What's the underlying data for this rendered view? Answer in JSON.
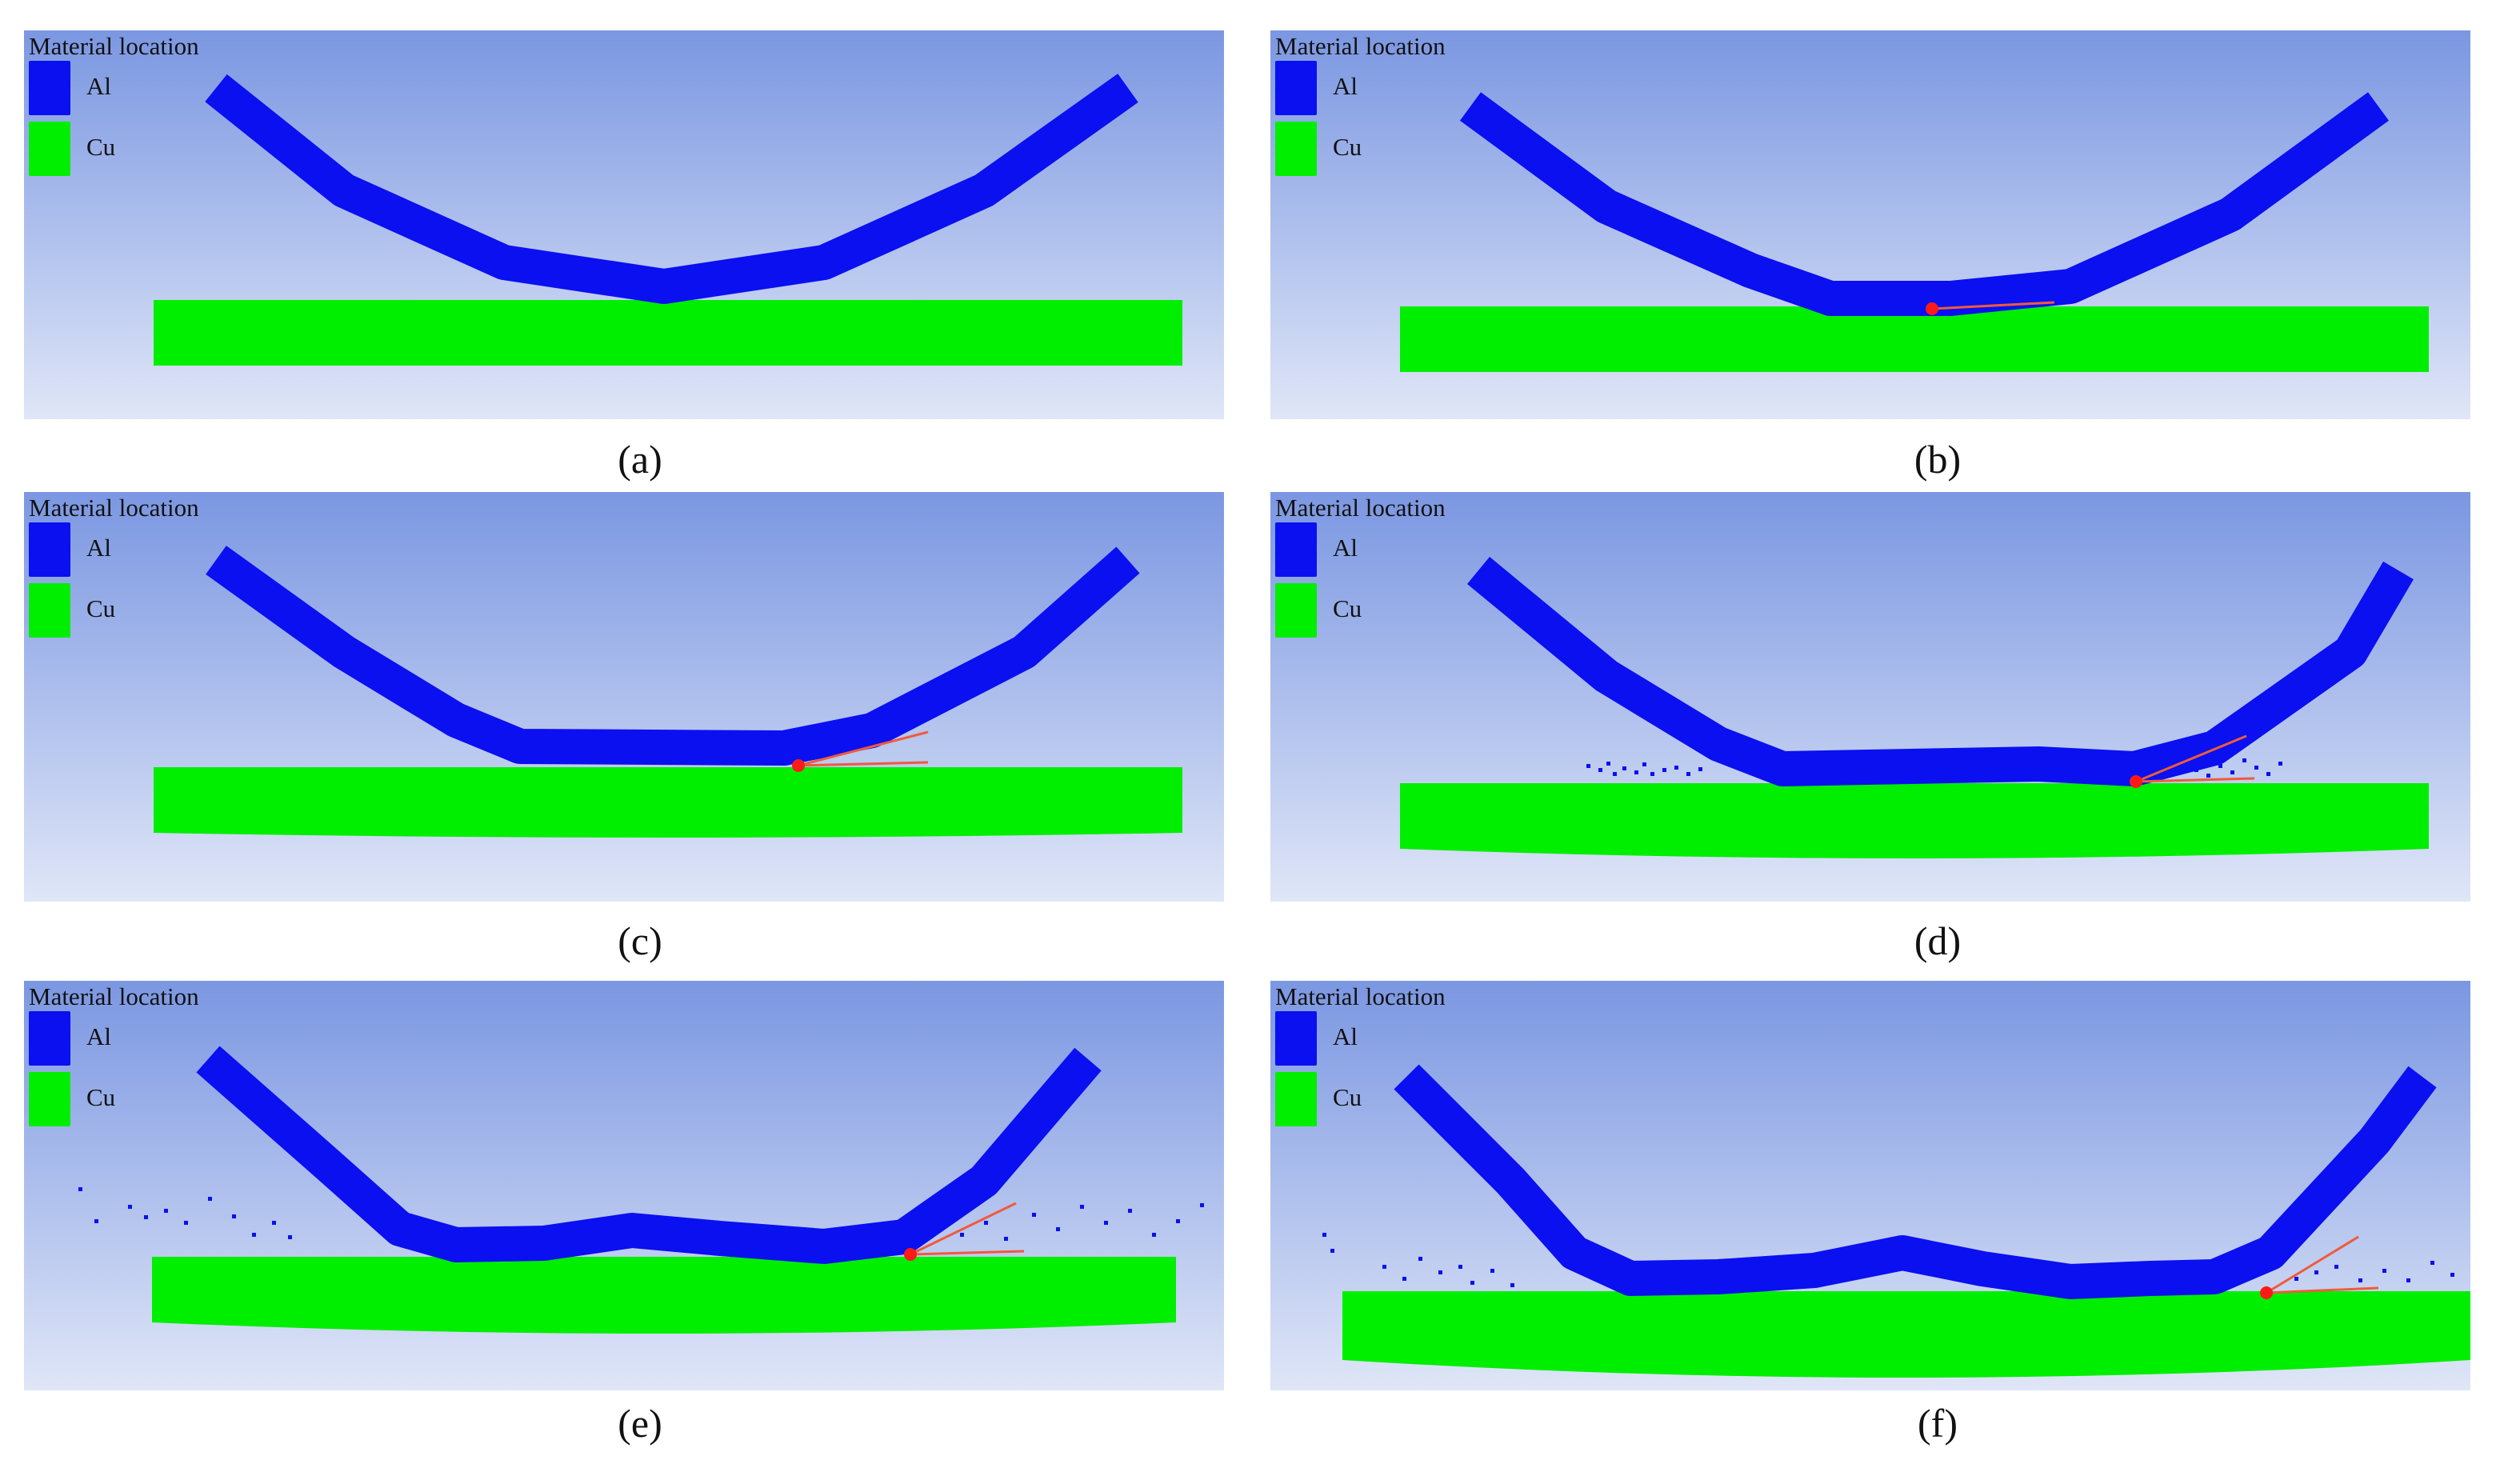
{
  "legend": {
    "title": "Material location",
    "materials": [
      {
        "label": "Al",
        "color": "#0a10f0"
      },
      {
        "label": "Cu",
        "color": "#00ee00"
      }
    ]
  },
  "colors": {
    "background_top": "#7b97e2",
    "background_bottom": "#dfe6f7",
    "jet_line": "#f05a3c",
    "collision_point": "#ff1a1a"
  },
  "panels": [
    {
      "id": "a",
      "caption": "(a)"
    },
    {
      "id": "b",
      "caption": "(b)"
    },
    {
      "id": "c",
      "caption": "(c)"
    },
    {
      "id": "d",
      "caption": "(d)"
    },
    {
      "id": "e",
      "caption": "(e)"
    },
    {
      "id": "f",
      "caption": "(f)"
    }
  ]
}
